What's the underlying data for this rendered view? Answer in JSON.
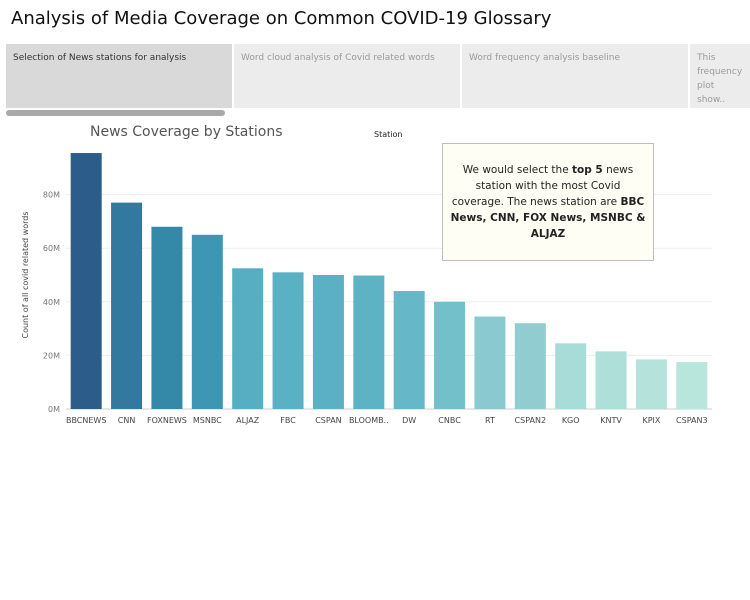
{
  "page_title": "Analysis of Media Coverage on Common COVID-19 Glossary",
  "story_tabs": [
    {
      "label": "Selection of News stations for analysis",
      "active": true
    },
    {
      "label": "Word cloud analysis of Covid related words",
      "active": false
    },
    {
      "label": "Word frequency analysis baseline",
      "active": false
    },
    {
      "label": "This frequency plot show..",
      "active": false
    }
  ],
  "annotation": {
    "part1": "We would select the ",
    "bold1": "top 5",
    "part2": " news station with the most Covid coverage. The news station are ",
    "bold2": "BBC News, CNN, FOX News, MSNBC & ALJAZ"
  },
  "chart_data": {
    "type": "bar",
    "title": "News Coverage by Stations",
    "column_header": "Station",
    "xlabel": "",
    "ylabel": "Count of all covid related words",
    "categories": [
      "BBCNEWS",
      "CNN",
      "FOXNEWS",
      "MSNBC",
      "ALJAZ",
      "FBC",
      "CSPAN",
      "BLOOMB..",
      "DW",
      "CNBC",
      "RT",
      "CSPAN2",
      "KGO",
      "KNTV",
      "KPIX",
      "CSPAN3"
    ],
    "values": [
      95.5,
      77,
      68,
      65,
      52.5,
      51,
      50,
      49.8,
      44,
      40,
      34.5,
      32,
      24.5,
      21.5,
      18.5,
      17.5
    ],
    "value_unit": "M",
    "ylim": [
      0,
      100
    ],
    "yticks": [
      0,
      20,
      40,
      60,
      80
    ],
    "ytick_labels": [
      "0M",
      "20M",
      "40M",
      "60M",
      "80M"
    ],
    "grid": true,
    "colors": [
      "#2c5c8a",
      "#33789e",
      "#3589a8",
      "#3d97b4",
      "#55aec2",
      "#59b1c4",
      "#5bb1c3",
      "#5db2c4",
      "#66b8c8",
      "#73bfca",
      "#8ac9cf",
      "#91ccd1",
      "#a7dcd8",
      "#aedfd9",
      "#b5e3db",
      "#b8e5dc"
    ]
  }
}
